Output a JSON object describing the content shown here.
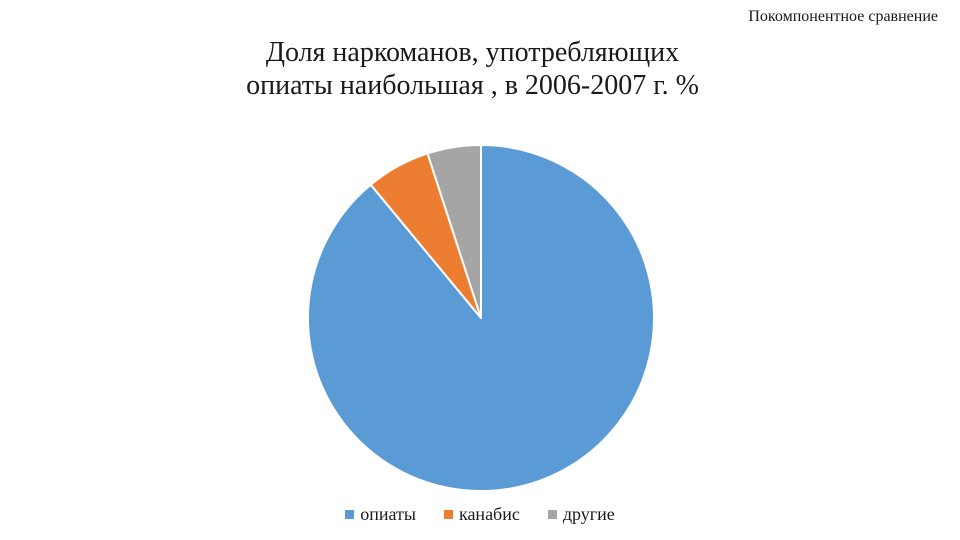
{
  "header": {
    "caption": "Покомпонентное сравнение"
  },
  "chart_data": {
    "type": "pie",
    "title_lines": [
      "Доля наркоманов, употребляющих",
      "опиаты наибольшая , в 2006-2007 г. %"
    ],
    "categories": [
      "опиаты",
      "канабис",
      "другие"
    ],
    "values": [
      89,
      6,
      5
    ],
    "colors": [
      "#5B9BD5",
      "#ED7D31",
      "#A5A5A5"
    ],
    "start": "12 o'clock, clockwise",
    "legend_position": "bottom"
  }
}
